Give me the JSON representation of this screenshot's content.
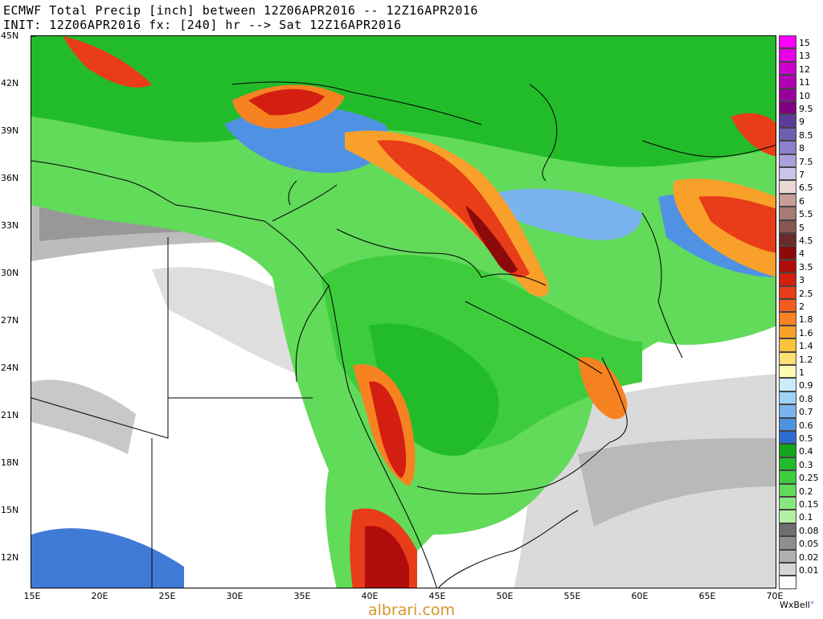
{
  "header": {
    "line1": "ECMWF Total Precip [inch] between 12Z06APR2016 -- 12Z16APR2016",
    "line2": "INIT: 12Z06APR2016 fx: [240] hr --> Sat 12Z16APR2016"
  },
  "map": {
    "lat_labels": [
      "45N",
      "42N",
      "39N",
      "36N",
      "33N",
      "30N",
      "27N",
      "24N",
      "21N",
      "18N",
      "15N",
      "12N"
    ],
    "lon_labels": [
      "15E",
      "20E",
      "25E",
      "30E",
      "35E",
      "40E",
      "45E",
      "50E",
      "55E",
      "60E",
      "65E",
      "70E"
    ],
    "region": "Middle East / Arabian Peninsula",
    "lat_range": [
      10,
      45
    ],
    "lon_range": [
      15,
      70
    ]
  },
  "legend": {
    "entries": [
      {
        "label": "15",
        "color": "#ff00ff"
      },
      {
        "label": "13",
        "color": "#e600e6"
      },
      {
        "label": "12",
        "color": "#cc00cc"
      },
      {
        "label": "11",
        "color": "#b300b3"
      },
      {
        "label": "10",
        "color": "#990099"
      },
      {
        "label": "9.5",
        "color": "#800080"
      },
      {
        "label": "9",
        "color": "#5a3c99"
      },
      {
        "label": "8.5",
        "color": "#6f5fb3"
      },
      {
        "label": "8",
        "color": "#8a80cc"
      },
      {
        "label": "7.5",
        "color": "#a7a2dc"
      },
      {
        "label": "7",
        "color": "#c9c6ea"
      },
      {
        "label": "6.5",
        "color": "#ead8d5"
      },
      {
        "label": "6",
        "color": "#c79d95"
      },
      {
        "label": "5.5",
        "color": "#a67a72"
      },
      {
        "label": "5",
        "color": "#865650"
      },
      {
        "label": "4.5",
        "color": "#6a2c2a"
      },
      {
        "label": "4",
        "color": "#8c0a0a"
      },
      {
        "label": "3.5",
        "color": "#b00c0c"
      },
      {
        "label": "3",
        "color": "#d41e12"
      },
      {
        "label": "2.5",
        "color": "#e93c18"
      },
      {
        "label": "2",
        "color": "#f35c1e"
      },
      {
        "label": "1.8",
        "color": "#f78222"
      },
      {
        "label": "1.6",
        "color": "#f9a02a"
      },
      {
        "label": "1.4",
        "color": "#fbc23c"
      },
      {
        "label": "1.2",
        "color": "#fde073"
      },
      {
        "label": "1",
        "color": "#fffab0"
      },
      {
        "label": "0.9",
        "color": "#c8ecfb"
      },
      {
        "label": "0.8",
        "color": "#a0d2f6"
      },
      {
        "label": "0.7",
        "color": "#7ab4ee"
      },
      {
        "label": "0.6",
        "color": "#4f92e3"
      },
      {
        "label": "0.5",
        "color": "#2c6cd2"
      },
      {
        "label": "0.4",
        "color": "#13a51c"
      },
      {
        "label": "0.3",
        "color": "#22bc2a"
      },
      {
        "label": "0.25",
        "color": "#3dcc3c"
      },
      {
        "label": "0.2",
        "color": "#62da5a"
      },
      {
        "label": "0.15",
        "color": "#8ae67e"
      },
      {
        "label": "0.1",
        "color": "#b3f0a5"
      },
      {
        "label": "0.08",
        "color": "#6e6e6e"
      },
      {
        "label": "0.05",
        "color": "#8e8e8e"
      },
      {
        "label": "0.02",
        "color": "#b0b0b0"
      },
      {
        "label": "0.01",
        "color": "#d6d6d6"
      },
      {
        "label": "",
        "color": "#ffffff"
      }
    ]
  },
  "brand": {
    "name": "WxBell",
    "dot": "°"
  },
  "watermark": "albrari.com"
}
